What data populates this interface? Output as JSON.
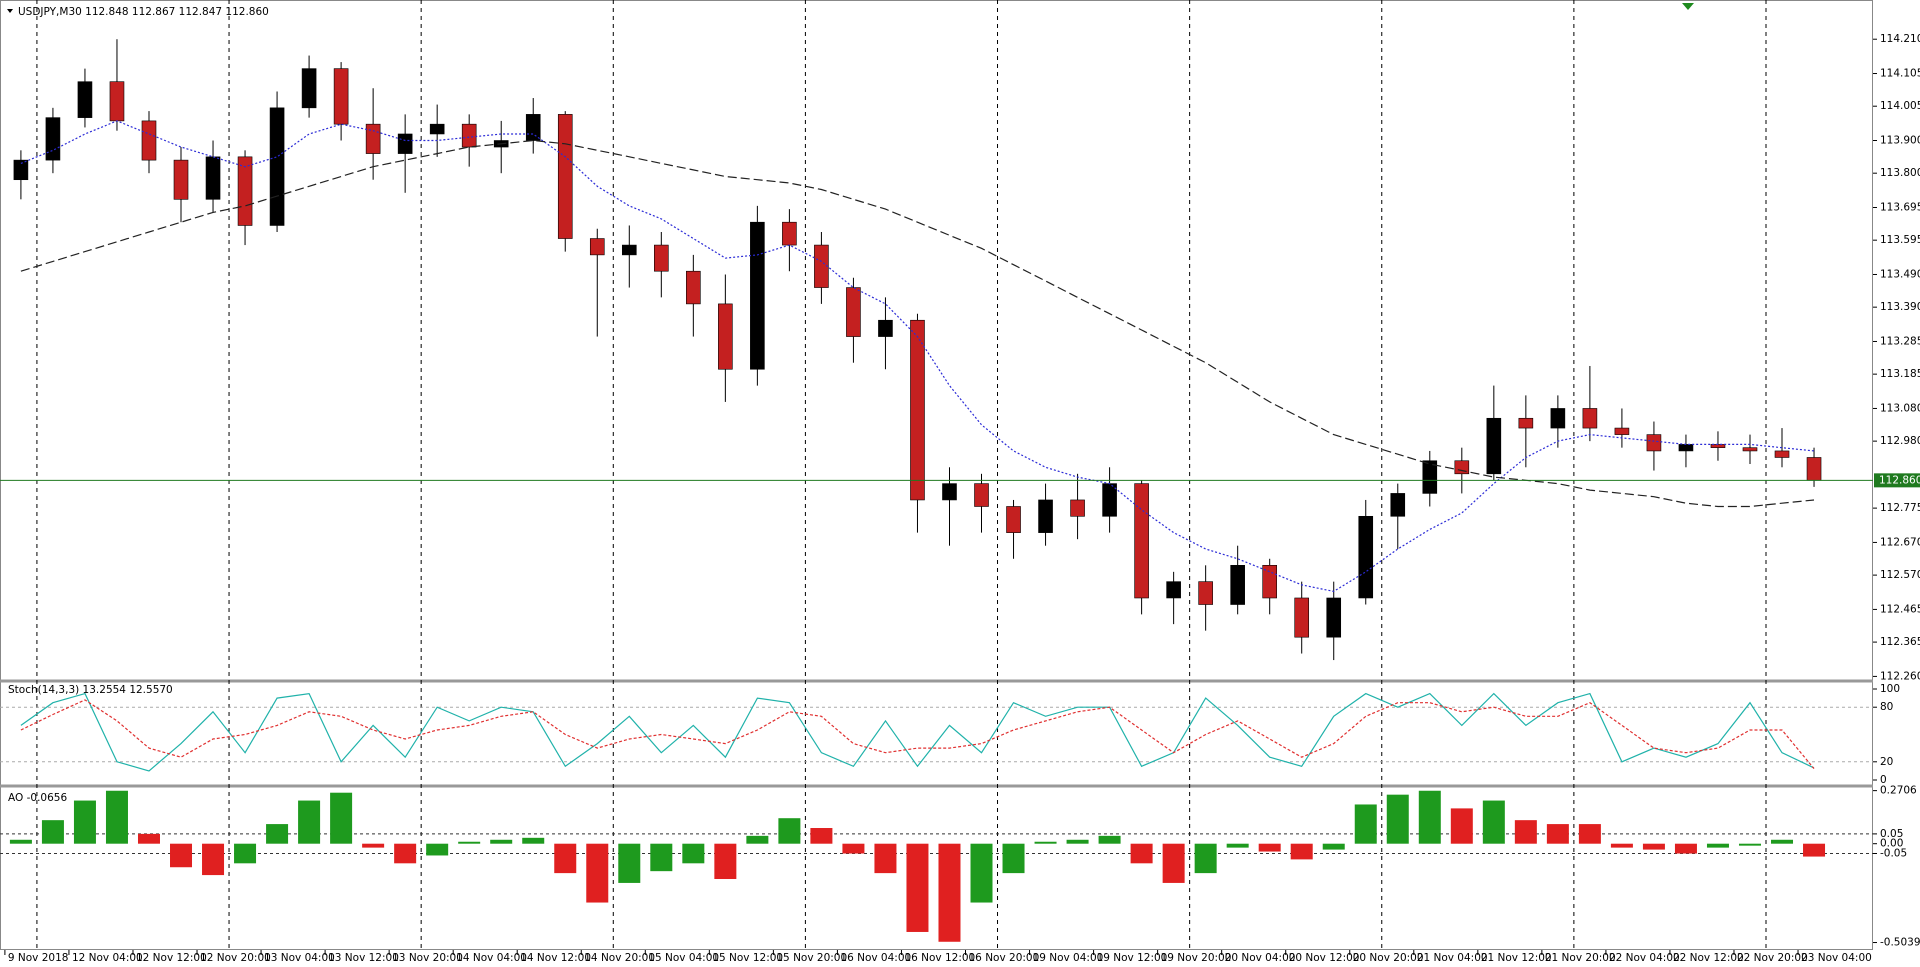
{
  "chart_data": [
    {
      "type": "candlestick",
      "title": "USDJPY,M30  112.848 112.867 112.847 112.860",
      "bull_color": "#000000",
      "bear_color": "#c42020",
      "candles": [
        [
          113.78,
          113.87,
          113.72,
          113.84
        ],
        [
          113.84,
          114.0,
          113.8,
          113.97
        ],
        [
          113.97,
          114.12,
          113.94,
          114.08
        ],
        [
          114.08,
          114.21,
          113.93,
          113.96
        ],
        [
          113.96,
          113.99,
          113.8,
          113.84
        ],
        [
          113.84,
          113.88,
          113.65,
          113.72
        ],
        [
          113.72,
          113.9,
          113.68,
          113.85
        ],
        [
          113.85,
          113.87,
          113.58,
          113.64
        ],
        [
          113.64,
          114.05,
          113.62,
          114.0
        ],
        [
          114.0,
          114.16,
          113.97,
          114.12
        ],
        [
          114.12,
          114.14,
          113.9,
          113.95
        ],
        [
          113.95,
          114.06,
          113.78,
          113.86
        ],
        [
          113.86,
          113.98,
          113.74,
          113.92
        ],
        [
          113.92,
          114.01,
          113.85,
          113.95
        ],
        [
          113.95,
          113.98,
          113.82,
          113.88
        ],
        [
          113.88,
          113.96,
          113.8,
          113.9
        ],
        [
          113.9,
          114.03,
          113.86,
          113.98
        ],
        [
          113.98,
          113.99,
          113.56,
          113.6
        ],
        [
          113.6,
          113.63,
          113.3,
          113.55
        ],
        [
          113.55,
          113.64,
          113.45,
          113.58
        ],
        [
          113.58,
          113.62,
          113.42,
          113.5
        ],
        [
          113.5,
          113.55,
          113.3,
          113.4
        ],
        [
          113.4,
          113.49,
          113.1,
          113.2
        ],
        [
          113.2,
          113.7,
          113.15,
          113.65
        ],
        [
          113.65,
          113.69,
          113.5,
          113.58
        ],
        [
          113.58,
          113.62,
          113.4,
          113.45
        ],
        [
          113.45,
          113.48,
          113.22,
          113.3
        ],
        [
          113.3,
          113.42,
          113.2,
          113.35
        ],
        [
          113.35,
          113.37,
          112.7,
          112.8
        ],
        [
          112.8,
          112.9,
          112.66,
          112.85
        ],
        [
          112.85,
          112.88,
          112.7,
          112.78
        ],
        [
          112.78,
          112.8,
          112.62,
          112.7
        ],
        [
          112.7,
          112.85,
          112.66,
          112.8
        ],
        [
          112.8,
          112.88,
          112.68,
          112.75
        ],
        [
          112.75,
          112.9,
          112.7,
          112.85
        ],
        [
          112.85,
          112.86,
          112.45,
          112.5
        ],
        [
          112.5,
          112.58,
          112.42,
          112.55
        ],
        [
          112.55,
          112.6,
          112.4,
          112.48
        ],
        [
          112.48,
          112.66,
          112.45,
          112.6
        ],
        [
          112.6,
          112.62,
          112.45,
          112.5
        ],
        [
          112.5,
          112.55,
          112.33,
          112.38
        ],
        [
          112.38,
          112.55,
          112.31,
          112.5
        ],
        [
          112.5,
          112.8,
          112.48,
          112.75
        ],
        [
          112.75,
          112.85,
          112.65,
          112.82
        ],
        [
          112.82,
          112.95,
          112.78,
          112.92
        ],
        [
          112.92,
          112.96,
          112.82,
          112.88
        ],
        [
          112.88,
          113.15,
          112.86,
          113.05
        ],
        [
          113.05,
          113.12,
          112.9,
          113.02
        ],
        [
          113.02,
          113.12,
          112.96,
          113.08
        ],
        [
          113.08,
          113.21,
          112.98,
          113.02
        ],
        [
          113.02,
          113.08,
          112.96,
          113.0
        ],
        [
          113.0,
          113.04,
          112.89,
          112.95
        ],
        [
          112.95,
          113.0,
          112.9,
          112.97
        ],
        [
          112.97,
          113.01,
          112.92,
          112.96
        ],
        [
          112.96,
          113.0,
          112.91,
          112.95
        ],
        [
          112.95,
          113.02,
          112.9,
          112.93
        ],
        [
          112.93,
          112.96,
          112.84,
          112.86
        ]
      ],
      "series": [
        {
          "color": "#2b2bd6",
          "dash": "2,2",
          "values": [
            113.83,
            113.87,
            113.92,
            113.96,
            113.92,
            113.88,
            113.85,
            113.82,
            113.85,
            113.92,
            113.95,
            113.93,
            113.9,
            113.9,
            113.91,
            113.92,
            113.92,
            113.85,
            113.76,
            113.7,
            113.66,
            113.6,
            113.54,
            113.55,
            113.58,
            113.53,
            113.45,
            113.4,
            113.3,
            113.15,
            113.03,
            112.95,
            112.9,
            112.87,
            112.85,
            112.77,
            112.7,
            112.65,
            112.62,
            112.58,
            112.54,
            112.52,
            112.58,
            112.65,
            112.71,
            112.76,
            112.85,
            112.93,
            112.98,
            113.0,
            112.99,
            112.98,
            112.97,
            112.97,
            112.97,
            112.96,
            112.95
          ]
        },
        {
          "color": "#222222",
          "dash": "9,4",
          "values": [
            113.5,
            113.53,
            113.56,
            113.59,
            113.62,
            113.65,
            113.68,
            113.7,
            113.73,
            113.76,
            113.79,
            113.82,
            113.84,
            113.86,
            113.88,
            113.89,
            113.9,
            113.89,
            113.87,
            113.85,
            113.83,
            113.81,
            113.79,
            113.78,
            113.77,
            113.75,
            113.72,
            113.69,
            113.65,
            113.61,
            113.57,
            113.52,
            113.47,
            113.42,
            113.37,
            113.32,
            113.27,
            113.22,
            113.16,
            113.1,
            113.05,
            113.0,
            112.97,
            112.94,
            112.91,
            112.89,
            112.87,
            112.86,
            112.85,
            112.83,
            112.82,
            112.81,
            112.79,
            112.78,
            112.78,
            112.79,
            112.8
          ]
        }
      ],
      "last_price": {
        "value": 112.86,
        "label": "112.860"
      },
      "last_price_color": "#1f7a1f",
      "ylim": [
        112.249,
        114.33
      ],
      "yticks": [
        {
          "value": 114.21,
          "label": "114.210"
        },
        {
          "value": 114.105,
          "label": "114.105"
        },
        {
          "value": 114.005,
          "label": "114.005"
        },
        {
          "value": 113.9,
          "label": "113.900"
        },
        {
          "value": 113.8,
          "label": "113.800"
        },
        {
          "value": 113.695,
          "label": "113.695"
        },
        {
          "value": 113.595,
          "label": "113.595"
        },
        {
          "value": 113.49,
          "label": "113.490"
        },
        {
          "value": 113.39,
          "label": "113.390"
        },
        {
          "value": 113.285,
          "label": "113.285"
        },
        {
          "value": 113.185,
          "label": "113.185"
        },
        {
          "value": 113.08,
          "label": "113.080"
        },
        {
          "value": 112.98,
          "label": "112.980"
        },
        {
          "value": 112.775,
          "label": "112.775"
        },
        {
          "value": 112.67,
          "label": "112.670"
        },
        {
          "value": 112.57,
          "label": "112.570"
        },
        {
          "value": 112.465,
          "label": "112.465"
        },
        {
          "value": 112.365,
          "label": "112.365"
        },
        {
          "value": 112.26,
          "label": "112.260"
        }
      ],
      "xticks": [
        {
          "value": 0,
          "label": "9 Nov 2018"
        },
        {
          "value": 2,
          "label": "12 Nov 04:00"
        },
        {
          "value": 4,
          "label": "12 Nov 12:00"
        },
        {
          "value": 6,
          "label": "12 Nov 20:00"
        },
        {
          "value": 8,
          "label": "13 Nov 04:00"
        },
        {
          "value": 10,
          "label": "13 Nov 12:00"
        },
        {
          "value": 12,
          "label": "13 Nov 20:00"
        },
        {
          "value": 14,
          "label": "14 Nov 04:00"
        },
        {
          "value": 16,
          "label": "14 Nov 12:00"
        },
        {
          "value": 18,
          "label": "14 Nov 20:00"
        },
        {
          "value": 20,
          "label": "15 Nov 04:00"
        },
        {
          "value": 22,
          "label": "15 Nov 12:00"
        },
        {
          "value": 24,
          "label": "15 Nov 20:00"
        },
        {
          "value": 26,
          "label": "16 Nov 04:00"
        },
        {
          "value": 28,
          "label": "16 Nov 12:00"
        },
        {
          "value": 30,
          "label": "16 Nov 20:00"
        },
        {
          "value": 32,
          "label": "19 Nov 04:00"
        },
        {
          "value": 34,
          "label": "19 Nov 12:00"
        },
        {
          "value": 36,
          "label": "19 Nov 20:00"
        },
        {
          "value": 38,
          "label": "20 Nov 04:00"
        },
        {
          "value": 40,
          "label": "20 Nov 12:00"
        },
        {
          "value": 42,
          "label": "20 Nov 20:00"
        },
        {
          "value": 44,
          "label": "21 Nov 04:00"
        },
        {
          "value": 46,
          "label": "21 Nov 12:00"
        },
        {
          "value": 48,
          "label": "21 Nov 20:00"
        },
        {
          "value": 50,
          "label": "22 Nov 04:00"
        },
        {
          "value": 52,
          "label": "22 Nov 12:00"
        },
        {
          "value": 54,
          "label": "22 Nov 20:00"
        },
        {
          "value": 56,
          "label": "23 Nov 04:00"
        }
      ],
      "separators": [
        1,
        7,
        13,
        19,
        25,
        31,
        37,
        43,
        49,
        55
      ]
    },
    {
      "type": "line",
      "title": "Stoch(14,3,3) 13.2554 12.5570",
      "series": [
        {
          "color": "#20b2aa",
          "dash": "",
          "values": [
            60,
            85,
            95,
            20,
            10,
            40,
            75,
            30,
            90,
            95,
            20,
            60,
            25,
            80,
            65,
            80,
            75,
            15,
            40,
            70,
            30,
            60,
            25,
            90,
            85,
            30,
            15,
            65,
            15,
            60,
            30,
            85,
            70,
            80,
            80,
            15,
            30,
            90,
            60,
            25,
            15,
            70,
            95,
            80,
            95,
            60,
            95,
            60,
            85,
            95,
            20,
            35,
            25,
            40,
            85,
            30,
            13.2554
          ]
        },
        {
          "color": "#e03030",
          "dash": "3,2",
          "values": [
            55,
            72,
            88,
            65,
            35,
            25,
            45,
            50,
            60,
            75,
            70,
            55,
            45,
            55,
            60,
            70,
            75,
            50,
            35,
            45,
            50,
            45,
            40,
            55,
            75,
            70,
            40,
            30,
            35,
            35,
            40,
            55,
            65,
            75,
            80,
            55,
            30,
            50,
            65,
            45,
            25,
            40,
            70,
            85,
            85,
            75,
            80,
            70,
            70,
            85,
            60,
            35,
            30,
            35,
            55,
            55,
            12.557
          ]
        }
      ],
      "ylim": [
        -5.5,
        105.5
      ],
      "yticks": [
        100,
        80,
        20,
        0
      ],
      "levels": [
        80,
        20
      ]
    },
    {
      "type": "bar",
      "title": "AO -0.0656",
      "up_color": "#1e9a1e",
      "down_color": "#e02020",
      "values": [
        0.02,
        0.12,
        0.22,
        0.27,
        0.05,
        -0.12,
        -0.16,
        -0.1,
        0.1,
        0.22,
        0.26,
        -0.02,
        -0.1,
        -0.06,
        0.01,
        0.02,
        0.03,
        -0.15,
        -0.3,
        -0.2,
        -0.14,
        -0.1,
        -0.18,
        0.04,
        0.13,
        0.08,
        -0.05,
        -0.15,
        -0.45,
        -0.5,
        -0.3,
        -0.15,
        0.01,
        0.02,
        0.04,
        -0.1,
        -0.2,
        -0.15,
        -0.02,
        -0.04,
        -0.08,
        -0.03,
        0.2,
        0.25,
        0.27,
        0.18,
        0.22,
        0.12,
        0.1,
        0.1,
        -0.02,
        -0.03,
        -0.05,
        -0.02,
        -0.01,
        0.02,
        -0.0656
      ],
      "ylim": [
        -0.542,
        0.284
      ],
      "yticks": [
        0.2706,
        0.05,
        {
          "value": 0,
          "label": "0.00"
        },
        -0.05,
        -0.5039
      ],
      "levels": [
        0.05,
        -0.05
      ]
    }
  ]
}
